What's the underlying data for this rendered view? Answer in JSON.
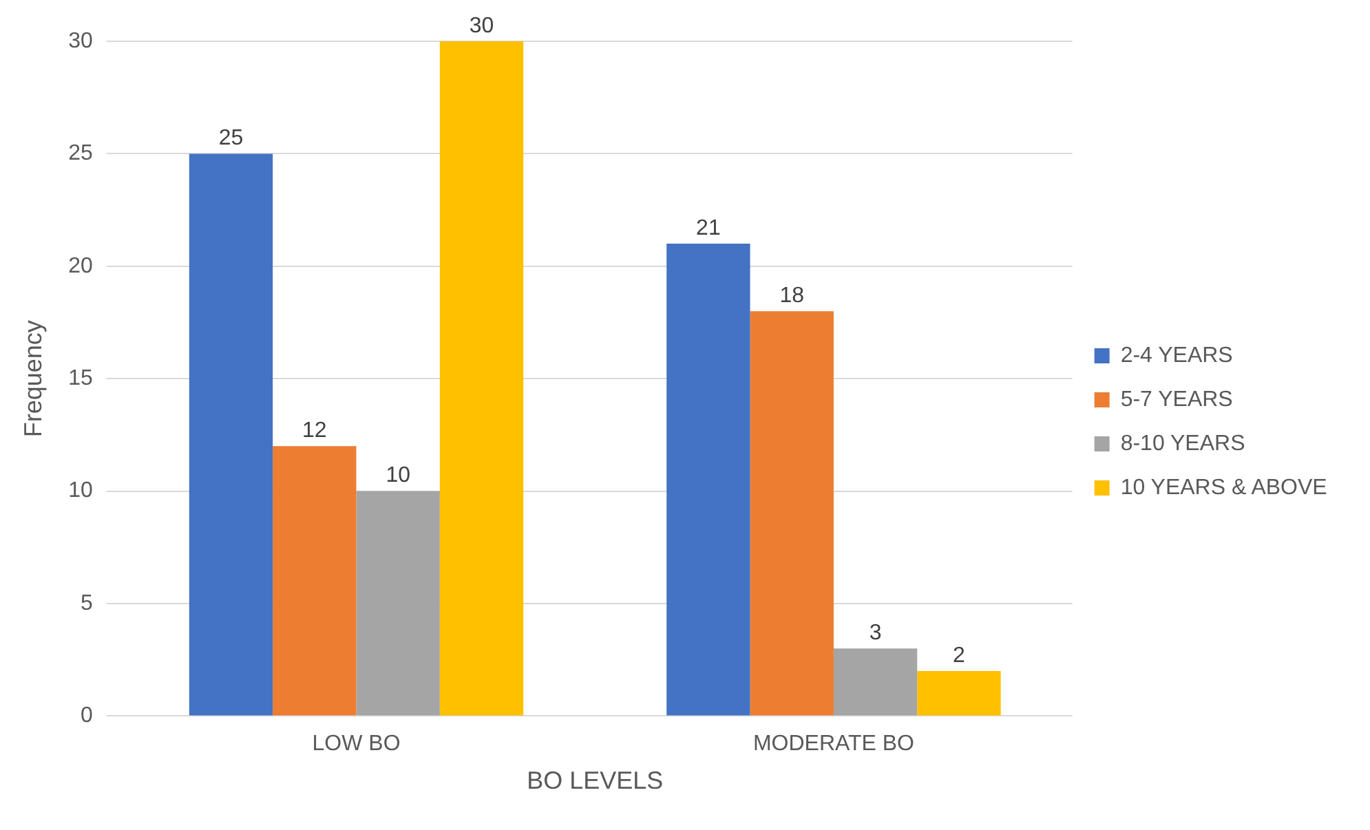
{
  "chart_data": {
    "type": "bar",
    "xlabel": "BO LEVELS",
    "ylabel": "Frequency",
    "categories": [
      "LOW BO",
      "MODERATE BO"
    ],
    "series": [
      {
        "name": "2-4 YEARS",
        "color": "#4472c4",
        "values": [
          25,
          21
        ]
      },
      {
        "name": "5-7 YEARS",
        "color": "#ed7d31",
        "values": [
          12,
          18
        ]
      },
      {
        "name": "8-10 YEARS",
        "color": "#a5a5a5",
        "values": [
          10,
          3
        ]
      },
      {
        "name": "10 YEARS & ABOVE",
        "color": "#ffc000",
        "values": [
          30,
          2
        ]
      }
    ],
    "ylim": [
      0,
      30
    ],
    "yticks": [
      0,
      5,
      10,
      15,
      20,
      25,
      30
    ],
    "grid": "y",
    "legend": "right",
    "data_labels": true
  }
}
